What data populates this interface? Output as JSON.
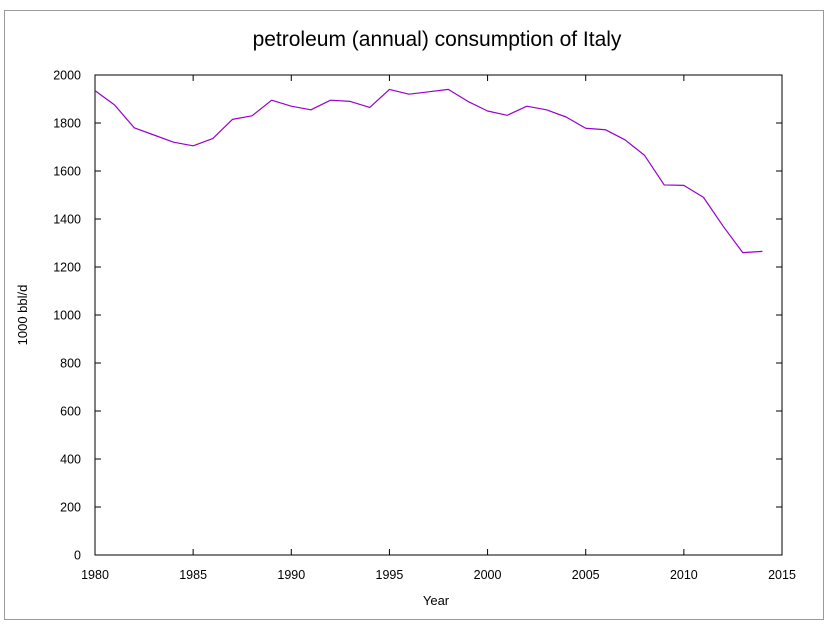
{
  "chart_data": {
    "type": "line",
    "title": "petroleum (annual) consumption of Italy",
    "xlabel": "Year",
    "ylabel": "1000 bbl/d",
    "xlim": [
      1980,
      2015
    ],
    "ylim": [
      0,
      2000
    ],
    "xticks": [
      "1980",
      "1985",
      "1990",
      "1995",
      "2000",
      "2005",
      "2010",
      "2015"
    ],
    "yticks": [
      "0",
      "200",
      "400",
      "600",
      "800",
      "1000",
      "1200",
      "1400",
      "1600",
      "1800",
      "2000"
    ],
    "grid": false,
    "legend": "none",
    "series": [
      {
        "color": "#9900cc",
        "x": [
          1980,
          1981,
          1982,
          1983,
          1984,
          1985,
          1986,
          1987,
          1988,
          1989,
          1990,
          1991,
          1992,
          1993,
          1994,
          1995,
          1996,
          1997,
          1998,
          1999,
          2000,
          2001,
          2002,
          2003,
          2004,
          2005,
          2006,
          2007,
          2008,
          2009,
          2010,
          2011,
          2012,
          2013,
          2014
        ],
        "y": [
          1935,
          1875,
          1780,
          1750,
          1720,
          1705,
          1735,
          1815,
          1830,
          1895,
          1870,
          1855,
          1895,
          1890,
          1865,
          1940,
          1920,
          1930,
          1940,
          1890,
          1850,
          1832,
          1870,
          1855,
          1825,
          1778,
          1772,
          1730,
          1665,
          1542,
          1540,
          1490,
          1370,
          1260,
          1265
        ]
      }
    ]
  }
}
